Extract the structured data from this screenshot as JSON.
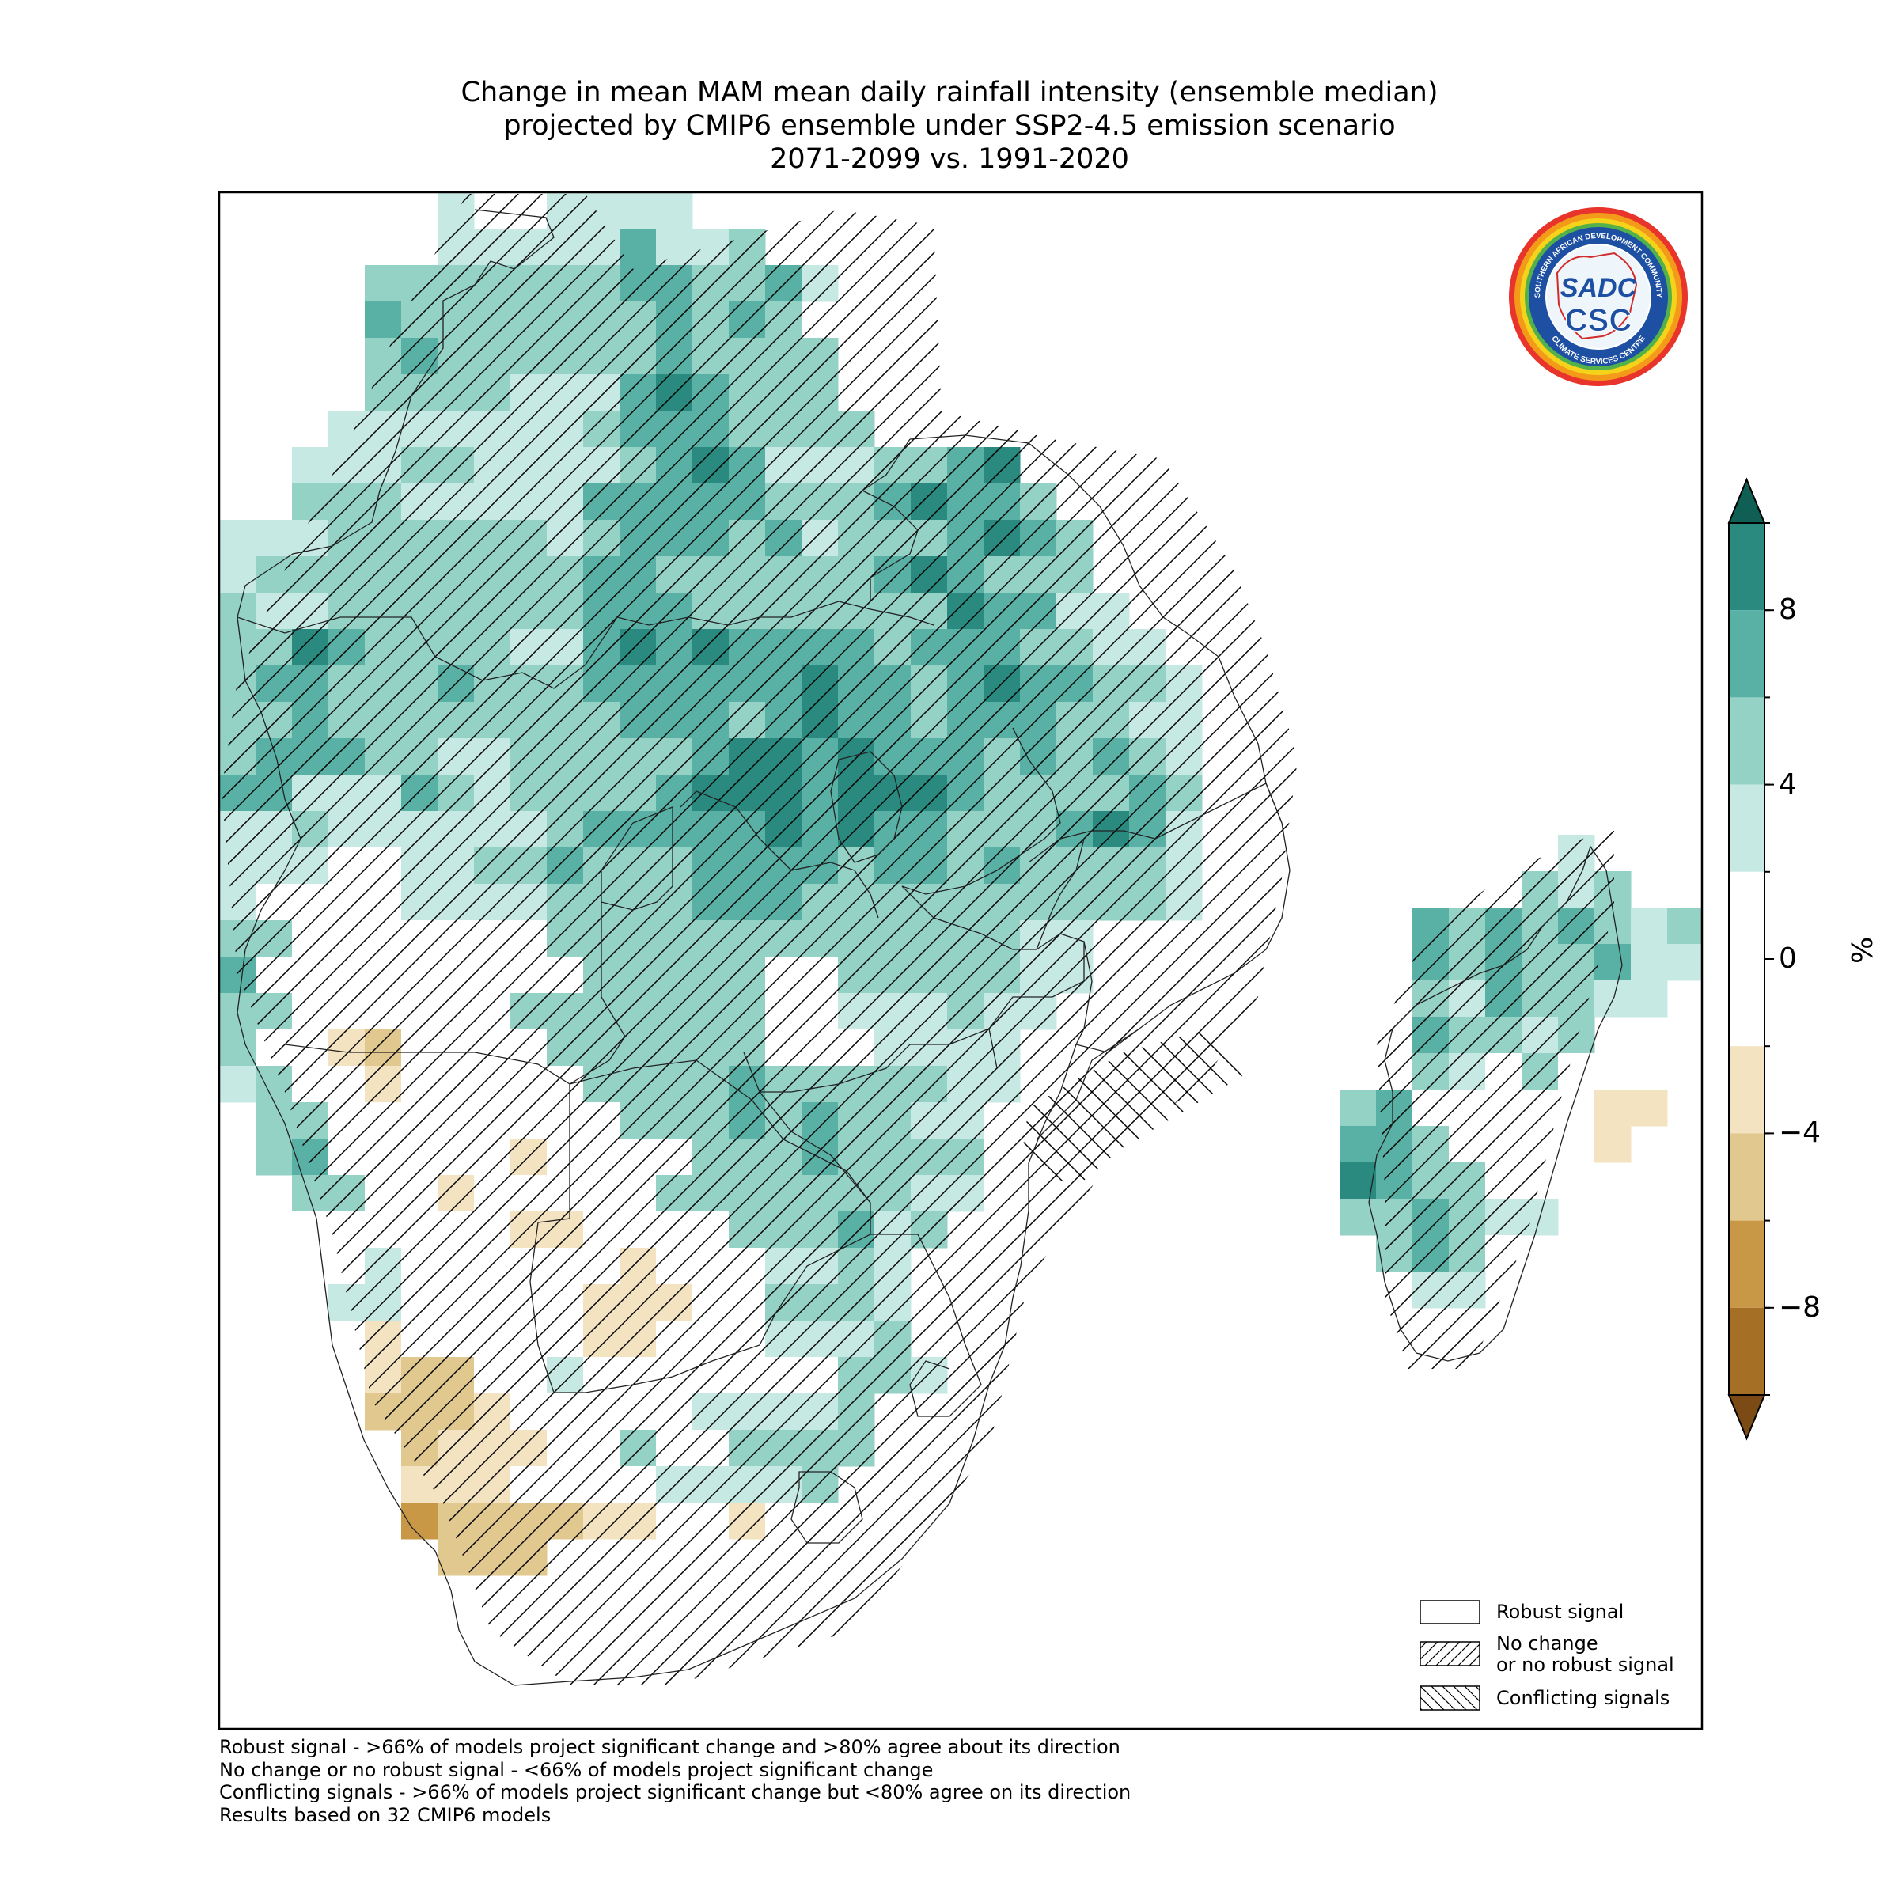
{
  "title": {
    "line1": "Change in mean MAM mean daily rainfall intensity (ensemble median)",
    "line2": "projected by CMIP6 ensemble under SSP2-4.5 emission scenario",
    "line3": "2071-2099 vs. 1991-2020"
  },
  "logo": {
    "text_top": "SOUTHERN AFRICAN DEVELOPMENT COMMUNITY",
    "text_bottom": "CLIMATE SERVICES CENTRE",
    "monogram": "SADC",
    "acronym": "CSC"
  },
  "colorbar": {
    "unit": "%",
    "ticks": [
      8,
      4,
      0,
      -4,
      -8
    ],
    "tick_labels": [
      "8",
      "4",
      "0",
      "−4",
      "−8"
    ],
    "range": [
      -10,
      10
    ],
    "bins": [
      {
        "from": 8,
        "to": 10,
        "color": "#2a8a80"
      },
      {
        "from": 6,
        "to": 8,
        "color": "#59b1a6"
      },
      {
        "from": 4,
        "to": 6,
        "color": "#94d2c6"
      },
      {
        "from": 2,
        "to": 4,
        "color": "#c7e9e3"
      },
      {
        "from": -2,
        "to": 2,
        "color": "#ffffff"
      },
      {
        "from": -4,
        "to": -2,
        "color": "#f4e3c0"
      },
      {
        "from": -6,
        "to": -4,
        "color": "#e0c88e"
      },
      {
        "from": -8,
        "to": -6,
        "color": "#c99847"
      },
      {
        "from": -10,
        "to": -8,
        "color": "#a56f26"
      }
    ],
    "extend_max_color": "#0f5f55",
    "extend_min_color": "#7c4a14"
  },
  "legend": {
    "robust": "Robust signal",
    "no_change_line1": "No change",
    "no_change_line2": "or no robust signal",
    "conflicting": "Conflicting signals"
  },
  "footnotes": {
    "line1": "Robust signal - >66% of models project significant change and >80% agree about its direction",
    "line2": "No change or no robust signal - <66% of models project significant change",
    "line3": "Conflicting signals - >66% of models project significant change but <80% agree on its direction",
    "line4": "Results based on 32 CMIP6 models"
  }
}
